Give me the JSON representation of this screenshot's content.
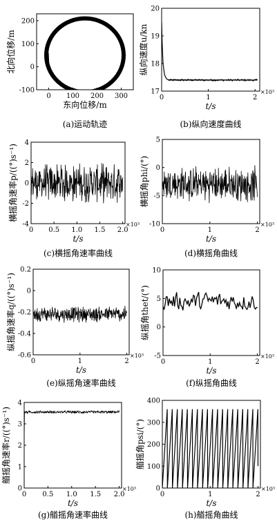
{
  "chart_data": [
    {
      "id": "a",
      "type": "line",
      "caption": "(a)运动轨迹",
      "xlabel": "东向位移/m",
      "ylabel": "北向位移/m",
      "xlim": [
        -50,
        350
      ],
      "ylim": [
        -100,
        230
      ],
      "xticks": [
        0,
        100,
        200,
        300
      ],
      "yticks": [
        -100,
        0,
        100,
        200
      ],
      "xtick_labels": [
        "0",
        "100",
        "200",
        "300"
      ],
      "ytick_labels": [
        "-100",
        "0",
        "100",
        "200"
      ],
      "series": [
        {
          "shape": "circle",
          "center": [
            150,
            50
          ],
          "radius": 160,
          "path_width_m": 14
        }
      ]
    },
    {
      "id": "b",
      "type": "line",
      "caption": "(b)纵向速度曲线",
      "xlabel": "t/s",
      "ylabel": "纵向速度u/kn",
      "x_exponent": "×10³",
      "xlim": [
        0,
        2.1
      ],
      "ylim": [
        17,
        20
      ],
      "xticks": [
        0,
        1,
        2
      ],
      "yticks": [
        17,
        18,
        19,
        20
      ],
      "xtick_labels": [
        "0",
        "1",
        "2"
      ],
      "ytick_labels": [
        "17",
        "18",
        "19",
        "20"
      ],
      "series": [
        {
          "x": [
            0,
            0.01,
            0.03,
            0.06,
            0.1,
            0.15,
            2.05
          ],
          "y": [
            19.5,
            18.8,
            18.0,
            17.6,
            17.45,
            17.4,
            17.4
          ]
        }
      ]
    },
    {
      "id": "c",
      "type": "line",
      "caption": "(c)横摇角速率曲线",
      "xlabel": "t/s",
      "ylabel": "横摇角速率p/((°)s⁻¹)",
      "x_exponent": "×10³",
      "xlim": [
        0,
        2.05
      ],
      "ylim": [
        -4,
        4
      ],
      "xticks": [
        0,
        0.5,
        1.0,
        1.5,
        2.0
      ],
      "yticks": [
        -4,
        -2,
        0,
        2,
        4
      ],
      "xtick_labels": [
        "0",
        "0.5",
        "1.0",
        "1.5",
        "2.0"
      ],
      "ytick_labels": [
        "-4",
        "-2",
        "0",
        "2",
        "4"
      ],
      "series": [
        {
          "x_range": [
            0,
            2.0
          ],
          "center": 0,
          "amplitude": 1.5,
          "noise": "high-frequency"
        }
      ]
    },
    {
      "id": "d",
      "type": "line",
      "caption": "(d)横摇角曲线",
      "xlabel": "t/s",
      "ylabel": "横摇角phi/(°)",
      "x_exponent": "×10³",
      "xlim": [
        0,
        2.05
      ],
      "ylim": [
        -10,
        5
      ],
      "xticks": [
        0,
        1,
        2
      ],
      "yticks": [
        -10,
        -5,
        0,
        5
      ],
      "xtick_labels": [
        "0",
        "1",
        "2"
      ],
      "ytick_labels": [
        "-10",
        "-5",
        "0",
        "5"
      ],
      "series": [
        {
          "x_range": [
            0,
            2.0
          ],
          "center": -3,
          "amplitude": 2.5,
          "noise": "high-frequency"
        }
      ]
    },
    {
      "id": "e",
      "type": "line",
      "caption": "(e)纵摇角速率曲线",
      "xlabel": "t/s",
      "ylabel": "纵摇角速率q/((°)s⁻¹)",
      "x_exponent": "×10³",
      "xlim": [
        0,
        2.05
      ],
      "ylim": [
        -0.6,
        0.2
      ],
      "xticks": [
        0,
        1,
        2
      ],
      "yticks": [
        -0.6,
        -0.4,
        -0.2,
        0,
        0.2
      ],
      "xtick_labels": [
        "0",
        "1",
        "2"
      ],
      "ytick_labels": [
        "-0.6",
        "-0.4",
        "-0.2",
        "0",
        "0.2"
      ],
      "series": [
        {
          "x_range": [
            0,
            2.0
          ],
          "center": -0.22,
          "amplitude": 0.06,
          "noise": "high-frequency"
        }
      ]
    },
    {
      "id": "f",
      "type": "line",
      "caption": "(f)纵摇角曲线",
      "xlabel": "t/s",
      "ylabel": "纵摇角thet/(°)",
      "x_exponent": "×10³",
      "xlim": [
        0,
        2.05
      ],
      "ylim": [
        -5,
        10
      ],
      "xticks": [
        0,
        1,
        2
      ],
      "yticks": [
        -5,
        0,
        5,
        10
      ],
      "xtick_labels": [
        "0",
        "1",
        "2"
      ],
      "ytick_labels": [
        "-5",
        "0",
        "5",
        "10"
      ],
      "series": [
        {
          "x_range": [
            0,
            2.0
          ],
          "center": 4.5,
          "amplitude": 2,
          "noise": "low-frequency"
        }
      ]
    },
    {
      "id": "g",
      "type": "line",
      "caption": "(g)艏摇角速率曲线",
      "xlabel": "t/s",
      "ylabel": "艏摇角速率r/((°)s⁻¹)",
      "x_exponent": "×10³",
      "xlim": [
        0,
        2.05
      ],
      "ylim": [
        0,
        4
      ],
      "xticks": [
        0,
        0.5,
        1.0,
        1.5,
        2.0
      ],
      "yticks": [
        0,
        1,
        2,
        3,
        4
      ],
      "xtick_labels": [
        "0",
        "0.5",
        "1.0",
        "1.5",
        "2.0"
      ],
      "ytick_labels": [
        "0",
        "1",
        "2",
        "3",
        "4"
      ],
      "series": [
        {
          "x_range": [
            0,
            2.0
          ],
          "center": 3.55,
          "amplitude": 0.05,
          "noise": "high-frequency"
        }
      ]
    },
    {
      "id": "h",
      "type": "line",
      "caption": "(h)艏摇角曲线",
      "xlabel": "t/s",
      "ylabel": "艏摇角psi/(°)",
      "x_exponent": "×10³",
      "xlim": [
        0,
        2.05
      ],
      "ylim": [
        0,
        400
      ],
      "xticks": [
        0,
        1,
        2
      ],
      "yticks": [
        0,
        100,
        200,
        300,
        400
      ],
      "xtick_labels": [
        "0",
        "1",
        "2"
      ],
      "ytick_labels": [
        "0",
        "100",
        "200",
        "300",
        "400"
      ],
      "series": [
        {
          "x_range": [
            0,
            2.0
          ],
          "shape": "sawtooth",
          "low": 0,
          "high": 360,
          "cycles": 19
        }
      ]
    }
  ]
}
